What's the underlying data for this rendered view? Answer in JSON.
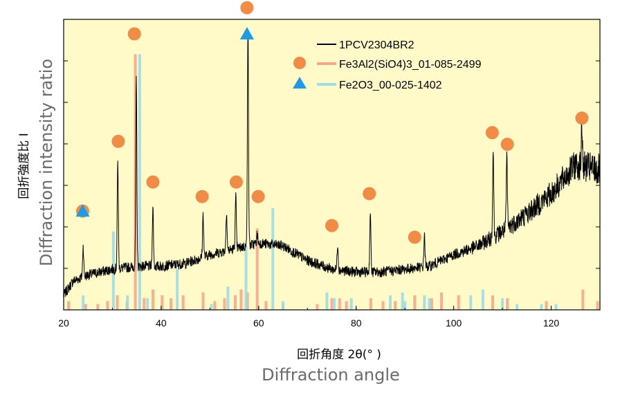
{
  "chart_data": {
    "type": "line",
    "xlabel_jp": "回折角度 2θ(° )",
    "xlabel_en": "Diffraction angle",
    "ylabel_jp": "回折強度比 I",
    "ylabel_en": "Diffraction intensity ratio",
    "xlim": [
      20,
      130
    ],
    "ylim": [
      0,
      1
    ],
    "x_ticks": [
      20,
      40,
      60,
      80,
      100,
      120
    ],
    "x_tick_labels": [
      "20",
      "40",
      "60",
      "80",
      "100",
      "120"
    ],
    "legend_position": "top-right",
    "background_color": "#fffac8",
    "series": [
      {
        "name": "1PCV2304BR2",
        "kind": "pattern",
        "color": "#000000",
        "baseline": [
          [
            20,
            0.05
          ],
          [
            22,
            0.1
          ],
          [
            25,
            0.12
          ],
          [
            30,
            0.14
          ],
          [
            35,
            0.15
          ],
          [
            40,
            0.15
          ],
          [
            45,
            0.16
          ],
          [
            50,
            0.19
          ],
          [
            55,
            0.21
          ],
          [
            60,
            0.23
          ],
          [
            65,
            0.22
          ],
          [
            70,
            0.17
          ],
          [
            75,
            0.14
          ],
          [
            80,
            0.13
          ],
          [
            85,
            0.13
          ],
          [
            90,
            0.14
          ],
          [
            95,
            0.15
          ],
          [
            100,
            0.19
          ],
          [
            105,
            0.22
          ],
          [
            110,
            0.27
          ],
          [
            115,
            0.33
          ],
          [
            120,
            0.4
          ],
          [
            125,
            0.5
          ],
          [
            130,
            0.48
          ]
        ],
        "peaks": [
          [
            24.0,
            0.22
          ],
          [
            31.1,
            0.51
          ],
          [
            34.9,
            0.79
          ],
          [
            38.3,
            0.36
          ],
          [
            48.6,
            0.33
          ],
          [
            53.4,
            0.34
          ],
          [
            55.3,
            0.39
          ],
          [
            57.8,
            0.98
          ],
          [
            59.7,
            0.26
          ],
          [
            76.2,
            0.23
          ],
          [
            82.9,
            0.34
          ],
          [
            94.0,
            0.26
          ],
          [
            108.1,
            0.55
          ],
          [
            110.9,
            0.53
          ],
          [
            126.3,
            0.63
          ]
        ]
      },
      {
        "name": "Fe3Al2(SiO4)3_01-085-2499",
        "kind": "reference",
        "color": "#f5a98c",
        "marker": "circle",
        "marker_color": "#f08c46",
        "sticks": [
          [
            21.0,
            0.03
          ],
          [
            24.5,
            0.02
          ],
          [
            27.0,
            0.02
          ],
          [
            29.0,
            0.03
          ],
          [
            31.0,
            0.05
          ],
          [
            33.0,
            0.03
          ],
          [
            34.7,
            0.88
          ],
          [
            36.5,
            0.04
          ],
          [
            38.3,
            0.07
          ],
          [
            40.2,
            0.05
          ],
          [
            42.0,
            0.04
          ],
          [
            44.5,
            0.05
          ],
          [
            48.6,
            0.06
          ],
          [
            51.0,
            0.03
          ],
          [
            53.0,
            0.04
          ],
          [
            55.2,
            0.05
          ],
          [
            56.4,
            0.07
          ],
          [
            57.7,
            0.06
          ],
          [
            59.7,
            0.28
          ],
          [
            61.5,
            0.03
          ],
          [
            65.0,
            0.02
          ],
          [
            72.0,
            0.02
          ],
          [
            75.0,
            0.04
          ],
          [
            76.6,
            0.04
          ],
          [
            78.0,
            0.03
          ],
          [
            83.0,
            0.04
          ],
          [
            85.5,
            0.03
          ],
          [
            88.0,
            0.03
          ],
          [
            92.0,
            0.05
          ],
          [
            95.5,
            0.04
          ],
          [
            97.5,
            0.06
          ],
          [
            101.0,
            0.05
          ],
          [
            108.0,
            0.05
          ],
          [
            111.0,
            0.04
          ],
          [
            119.0,
            0.03
          ],
          [
            126.5,
            0.07
          ],
          [
            129.5,
            0.03
          ]
        ],
        "markers": [
          [
            23.9,
            0.34
          ],
          [
            31.2,
            0.58
          ],
          [
            34.5,
            0.95
          ],
          [
            38.3,
            0.44
          ],
          [
            48.4,
            0.39
          ],
          [
            55.4,
            0.44
          ],
          [
            57.6,
            1.04
          ],
          [
            59.9,
            0.39
          ],
          [
            75.0,
            0.29
          ],
          [
            82.7,
            0.4
          ],
          [
            92.0,
            0.25
          ],
          [
            107.9,
            0.61
          ],
          [
            111.0,
            0.57
          ],
          [
            126.3,
            0.66
          ]
        ]
      },
      {
        "name": "Fe2O3_00-025-1402",
        "kind": "reference",
        "color": "#9fdce4",
        "marker": "triangle",
        "marker_color": "#1e9be6",
        "sticks": [
          [
            24.0,
            0.05
          ],
          [
            30.2,
            0.27
          ],
          [
            33.1,
            0.05
          ],
          [
            35.6,
            0.88
          ],
          [
            37.2,
            0.04
          ],
          [
            43.3,
            0.14
          ],
          [
            50.3,
            0.02
          ],
          [
            53.7,
            0.08
          ],
          [
            57.4,
            0.22
          ],
          [
            62.9,
            0.35
          ],
          [
            65.0,
            0.03
          ],
          [
            74.0,
            0.06
          ],
          [
            75.5,
            0.04
          ],
          [
            79.0,
            0.04
          ],
          [
            87.0,
            0.05
          ],
          [
            89.5,
            0.06
          ],
          [
            90.0,
            0.03
          ],
          [
            94.0,
            0.05
          ],
          [
            95.0,
            0.04
          ],
          [
            103.5,
            0.05
          ],
          [
            106.0,
            0.07
          ],
          [
            110.0,
            0.04
          ],
          [
            113.0,
            0.02
          ],
          [
            118.0,
            0.02
          ],
          [
            121.0,
            0.02
          ]
        ],
        "markers": [
          [
            23.9,
            0.34
          ],
          [
            57.6,
            0.95
          ]
        ]
      }
    ]
  }
}
